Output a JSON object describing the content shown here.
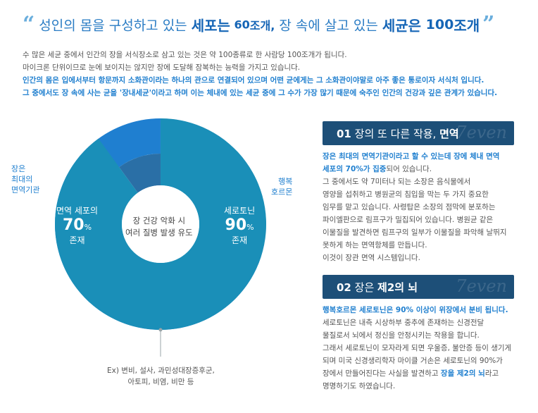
{
  "header": {
    "open_quote": "“",
    "part1": "성인의 몸을 구성하고 있는 ",
    "part2": "세포는",
    "part3": " 60",
    "part4": "조개,",
    "part5": "  장 속에 살고 있는 ",
    "part6": "세균은",
    "part7": " 100",
    "part8": "조개",
    "close_quote": "”"
  },
  "intro": {
    "line1": "수 많은 세균 중에서 인간의 장을 서식장소로 삼고 있는 것은 약 100종류로 한 사람당 100조개가 됩니다.",
    "line2": "마이크론 단위이므로 눈에 보이지는 않지만  장에 도달해 잠복하는 능력을 가지고 있습니다.",
    "line3": "인간의 몸은 입에서부터 항문까지 소화관이라는 하나의 관으로 연결되어 있으며 어떤 균에게는 그 소화관이야말로 아주 좋은 통로이자 서식처 입니다.",
    "line4": "그 중에서도 장 속에 사는 균을 '장내세균'이라고 하며 이는 체내에 있는 세균 중에 그 수가 가장 많기 때문에 숙주인 인간의 건강과 깊은 관계가 있습니다."
  },
  "chart": {
    "left_label": [
      "장은",
      "최대의",
      "면역기관"
    ],
    "right_label": [
      "행복",
      "호르몬"
    ],
    "outer_segment": {
      "name": "면역 세포의",
      "value": 70,
      "unit": "%",
      "sub": "존재"
    },
    "inner_segment": {
      "name": "세로토닌",
      "value": 90,
      "unit": "%",
      "sub": "존재"
    },
    "center": [
      "장 건강 악화 시",
      "여러 질병 발생 유도"
    ],
    "footnote": [
      "Ex) 변비, 설사, 과민성대장증후군,",
      "아토피, 비염, 비만 등"
    ],
    "colors": {
      "outer": "#1f7fd0",
      "inner": "#1a8fb8",
      "rest": "#c8d2d6",
      "inner_ring_bg": "#2a6fa6"
    }
  },
  "panel1": {
    "num": "01",
    "title_a": " 장의 또 다른 작용, ",
    "title_b": "면역",
    "logo": "7even",
    "lines_blue": [
      "장은 최대의 면역기관이라고 할 수 있는데 장에 체내 면역"
    ],
    "line2_blue": "세포의 70%가 집중",
    "line2_rest": "되어 있습니다.",
    "lines": [
      "그 중에서도 약 7미터나 되는 소장은 음식물에서",
      "영양을 섭취하고 병원균의 침입을 막는 두 가지 중요한",
      "임무를 맡고 있습니다. 사령탑은 소장의 점막에 분포하는",
      "파이엘판으로 림프구가 밀집되어 있습니다. 병원균 같은",
      "이물질을 발견하면 림프구의 일부가 이물질을 파악해 날뛰지",
      "못하게 하는 면역항체를 만듭니다.",
      "이것이 장관 면역 시스템입니다."
    ]
  },
  "panel2": {
    "num": "02",
    "title_a": " 장은 ",
    "title_b": "제2의 뇌",
    "logo": "7even",
    "line1_blue": "행복호르몬 세로토닌은 90% 이상이 위장에서 분비 됩니다.",
    "lines": [
      "세로토닌은 내측 시상하부 중추에 존재하는 신경전달",
      "물질로서 뇌에서 정신을 안정시키는 작용을 합니다.",
      "그래서 세로토닌이 모자라게 되면 우울증, 불안증 등이 생기게",
      "되며 미국 신경생리학자 마이클 거손은 세로토닌의 90%가"
    ],
    "last_a": "장에서 만들어진다는 사실을 발견하고 ",
    "last_b": "장을 제2의 뇌",
    "last_c": "라고",
    "final": "명명하기도 하였습니다."
  }
}
